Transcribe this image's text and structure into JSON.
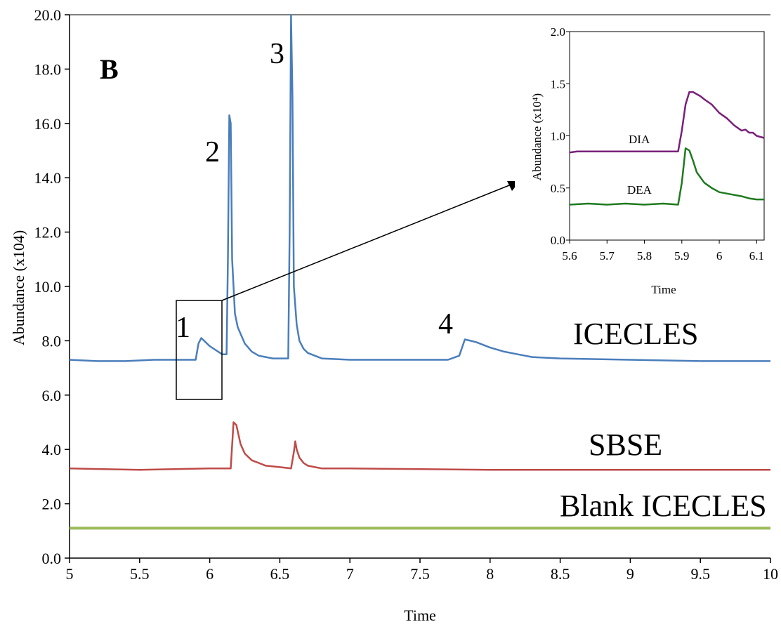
{
  "chart_data": [
    {
      "type": "line",
      "panel_label": "B",
      "xlabel": "Time",
      "ylabel": "Abundance (x104)",
      "xlim": [
        5,
        10
      ],
      "ylim": [
        0,
        20
      ],
      "x_ticks": [
        "5",
        "5.5",
        "6",
        "6.5",
        "7",
        "7.5",
        "8",
        "8.5",
        "9",
        "9.5",
        "10"
      ],
      "y_ticks": [
        "0.0",
        "2.0",
        "4.0",
        "6.0",
        "8.0",
        "10.0",
        "12.0",
        "14.0",
        "16.0",
        "18.0",
        "20.0"
      ],
      "grid": false,
      "series": [
        {
          "name": "ICECLES",
          "color": "#4a7ebb",
          "x": [
            5.0,
            5.2,
            5.4,
            5.6,
            5.8,
            5.9,
            5.92,
            5.94,
            5.97,
            6.0,
            6.03,
            6.06,
            6.09,
            6.12,
            6.13,
            6.14,
            6.15,
            6.16,
            6.18,
            6.2,
            6.25,
            6.3,
            6.35,
            6.4,
            6.45,
            6.5,
            6.56,
            6.57,
            6.58,
            6.59,
            6.6,
            6.62,
            6.64,
            6.67,
            6.7,
            6.75,
            6.8,
            7.0,
            7.2,
            7.5,
            7.7,
            7.78,
            7.82,
            7.86,
            7.9,
            8.0,
            8.1,
            8.2,
            8.3,
            8.5,
            9.0,
            9.5,
            10.0
          ],
          "y": [
            7.3,
            7.25,
            7.25,
            7.3,
            7.3,
            7.3,
            7.9,
            8.1,
            7.95,
            7.8,
            7.7,
            7.6,
            7.5,
            7.5,
            11.0,
            16.3,
            16.0,
            11.0,
            9.0,
            8.5,
            7.9,
            7.6,
            7.45,
            7.4,
            7.35,
            7.35,
            7.35,
            12.0,
            20.0,
            17.0,
            10.0,
            8.6,
            8.0,
            7.7,
            7.55,
            7.45,
            7.35,
            7.3,
            7.3,
            7.3,
            7.3,
            7.45,
            8.05,
            8.0,
            7.95,
            7.75,
            7.6,
            7.5,
            7.4,
            7.35,
            7.3,
            7.25,
            7.25
          ]
        },
        {
          "name": "SBSE",
          "color": "#be4b48",
          "x": [
            5.0,
            5.5,
            6.0,
            6.15,
            6.17,
            6.19,
            6.22,
            6.25,
            6.3,
            6.35,
            6.4,
            6.5,
            6.58,
            6.6,
            6.61,
            6.62,
            6.64,
            6.67,
            6.7,
            6.75,
            6.8,
            7.0,
            8.0,
            9.0,
            10.0
          ],
          "y": [
            3.3,
            3.25,
            3.3,
            3.3,
            5.0,
            4.9,
            4.2,
            3.85,
            3.6,
            3.5,
            3.4,
            3.35,
            3.3,
            3.9,
            4.3,
            4.0,
            3.7,
            3.5,
            3.4,
            3.35,
            3.3,
            3.3,
            3.25,
            3.25,
            3.25
          ]
        },
        {
          "name": "Blank ICECLES",
          "color": "#9bbb59",
          "x": [
            5.0,
            10.0
          ],
          "y": [
            1.1,
            1.1
          ]
        }
      ],
      "annotations": [
        "1",
        "2",
        "3",
        "4"
      ]
    },
    {
      "type": "line",
      "xlabel": "Time",
      "ylabel": "Abundance (x10⁴)",
      "xlim": [
        5.6,
        6.12
      ],
      "ylim": [
        0,
        2.0
      ],
      "x_ticks": [
        "5.6",
        "5.7",
        "5.8",
        "5.9",
        "6",
        "6.1"
      ],
      "y_ticks": [
        "0.0\u0002",
        "0.5\u0002",
        "1.0\u0002",
        "1.5\u0002",
        "2.0\u0002"
      ],
      "series": [
        {
          "name": "DIA",
          "color": "#7a1f7a",
          "x": [
            5.6,
            5.62,
            5.7,
            5.8,
            5.89,
            5.9,
            5.91,
            5.92,
            5.93,
            5.95,
            5.96,
            5.98,
            6.0,
            6.02,
            6.04,
            6.06,
            6.07,
            6.08,
            6.09,
            6.1,
            6.12
          ],
          "y": [
            0.84,
            0.85,
            0.85,
            0.85,
            0.85,
            1.05,
            1.3,
            1.42,
            1.42,
            1.38,
            1.35,
            1.3,
            1.22,
            1.17,
            1.1,
            1.05,
            1.06,
            1.03,
            1.03,
            1.0,
            0.98
          ]
        },
        {
          "name": "DEA",
          "color": "#1f7a1f",
          "x": [
            5.6,
            5.65,
            5.7,
            5.75,
            5.8,
            5.85,
            5.89,
            5.9,
            5.91,
            5.92,
            5.93,
            5.94,
            5.96,
            5.98,
            6.0,
            6.03,
            6.06,
            6.08,
            6.1,
            6.12
          ],
          "y": [
            0.34,
            0.35,
            0.34,
            0.35,
            0.34,
            0.35,
            0.34,
            0.55,
            0.88,
            0.86,
            0.76,
            0.65,
            0.55,
            0.5,
            0.46,
            0.44,
            0.42,
            0.4,
            0.39,
            0.39
          ]
        }
      ]
    }
  ]
}
